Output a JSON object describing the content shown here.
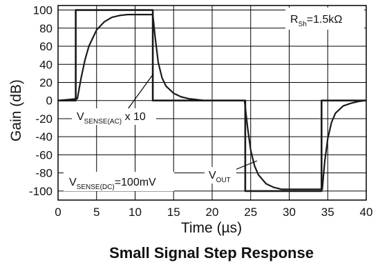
{
  "chart_data": {
    "type": "line",
    "title": "Small Signal Step Response",
    "xlabel": "Time (µs)",
    "ylabel": "Gain (dB)",
    "xlim": [
      0,
      40
    ],
    "ylim": [
      -110,
      105
    ],
    "xticks": [
      "0",
      "5",
      "10",
      "15",
      "20",
      "25",
      "30",
      "35",
      "40"
    ],
    "yticks": [
      "100",
      "80",
      "60",
      "40",
      "20",
      "0",
      "-20",
      "-40",
      "-60",
      "-80",
      "-100"
    ],
    "grid": true,
    "colors": {
      "line": "#1a1a1a",
      "grid": "#000000",
      "background": "#ffffff"
    },
    "series": [
      {
        "name": "V_SENSE(AC) x 10",
        "x": [
          0,
          2.3,
          2.3,
          12.3,
          12.3,
          24.3,
          24.3,
          34.2,
          34.2,
          40
        ],
        "y": [
          0,
          0,
          100,
          100,
          0,
          0,
          -100,
          -100,
          0,
          0
        ]
      },
      {
        "name": "V_OUT",
        "x": [
          0,
          2.5,
          3,
          3.5,
          4,
          5,
          6,
          7,
          8,
          9,
          10,
          11,
          12.3,
          12.6,
          13,
          13.5,
          14,
          15,
          16,
          17,
          18,
          19,
          20,
          24.2,
          24.6,
          25,
          25.5,
          26,
          27,
          28,
          29,
          30,
          31,
          32,
          33,
          34.3,
          34.6,
          35,
          35.5,
          36,
          37,
          38,
          39,
          40
        ],
        "y": [
          0,
          2,
          25,
          45,
          60,
          78,
          87,
          92,
          94,
          95,
          95,
          95,
          95,
          70,
          42,
          25,
          16,
          8,
          4,
          2,
          1,
          0,
          0,
          0,
          -30,
          -55,
          -72,
          -82,
          -92,
          -96,
          -98,
          -98,
          -98,
          -98,
          -98,
          -98,
          -68,
          -42,
          -24,
          -14,
          -6,
          -3,
          -1,
          0
        ]
      }
    ],
    "annotations": {
      "rsh": {
        "main": "R",
        "sub": "Sh",
        "rest": "=1.5kΩ"
      },
      "vsense_ac": {
        "main": "V",
        "sub": "SENSE(AC)",
        "rest": " x 10"
      },
      "vsense_dc": {
        "main": "V",
        "sub": "SENSE(DC)",
        "rest": "=100mV"
      },
      "vout": {
        "main": "V",
        "sub": "OUT"
      }
    }
  }
}
